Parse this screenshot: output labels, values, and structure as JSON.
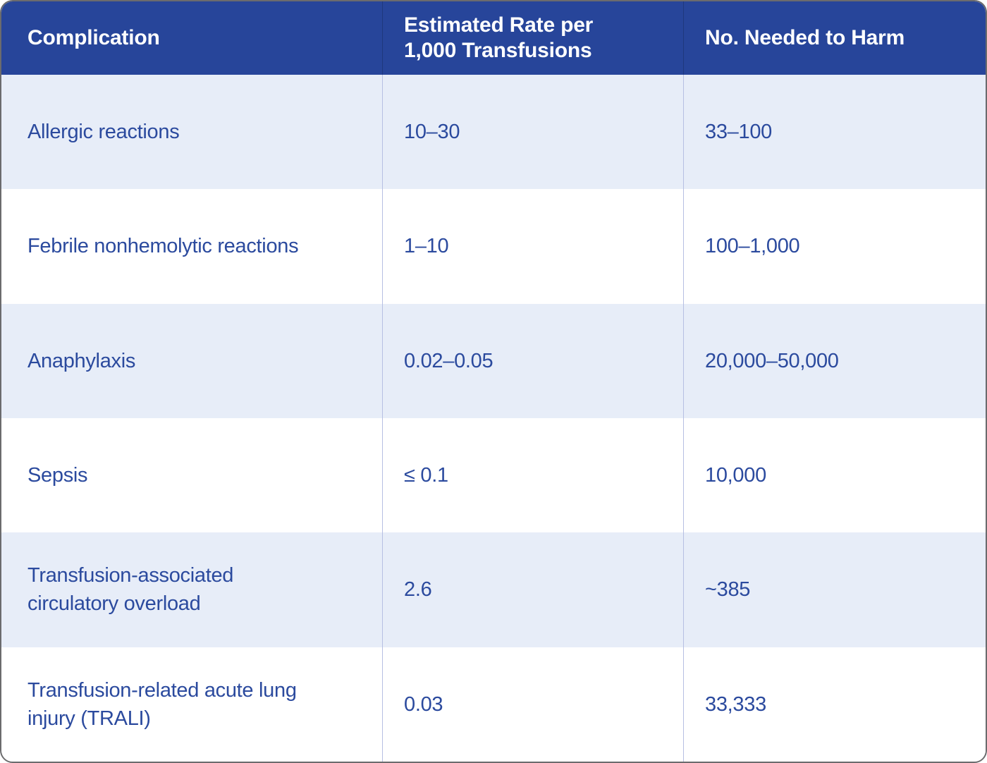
{
  "colors": {
    "header_bg": "#27459A",
    "header_text": "#FFFFFF",
    "row_alt_bg": "#E7EDF8",
    "row_bg": "#FFFFFF",
    "body_text": "#2B4A9E",
    "column_divider": "#B6BFE2",
    "outer_border": "#6B6B6D"
  },
  "table": {
    "columns": [
      {
        "label": "Complication"
      },
      {
        "label": [
          "Estimated Rate per",
          "1,000 Transfusions"
        ]
      },
      {
        "label": "No. Needed to Harm"
      }
    ],
    "rows": [
      {
        "complication": "Allergic reactions",
        "rate": "10–30",
        "nnh": "33–100"
      },
      {
        "complication": "Febrile nonhemolytic reactions",
        "rate": "1–10",
        "nnh": "100–1,000"
      },
      {
        "complication": "Anaphylaxis",
        "rate": "0.02–0.05",
        "nnh": "20,000–50,000"
      },
      {
        "complication": "Sepsis",
        "rate": "≤ 0.1",
        "nnh": "10,000"
      },
      {
        "complication": [
          "Transfusion-associated",
          "circulatory overload"
        ],
        "rate": "2.6",
        "nnh": "~385"
      },
      {
        "complication": [
          "Transfusion-related acute lung",
          "injury (TRALI)"
        ],
        "rate": "0.03",
        "nnh": "33,333"
      }
    ]
  },
  "chart_data": {
    "type": "table",
    "title": "",
    "columns": [
      "Complication",
      "Estimated Rate per 1,000 Transfusions",
      "No. Needed to Harm"
    ],
    "rows": [
      [
        "Allergic reactions",
        "10–30",
        "33–100"
      ],
      [
        "Febrile nonhemolytic reactions",
        "1–10",
        "100–1,000"
      ],
      [
        "Anaphylaxis",
        "0.02–0.05",
        "20,000–50,000"
      ],
      [
        "Sepsis",
        "≤ 0.1",
        "10,000"
      ],
      [
        "Transfusion-associated circulatory overload",
        "2.6",
        "~385"
      ],
      [
        "Transfusion-related acute lung injury (TRALI)",
        "0.03",
        "33,333"
      ]
    ]
  }
}
